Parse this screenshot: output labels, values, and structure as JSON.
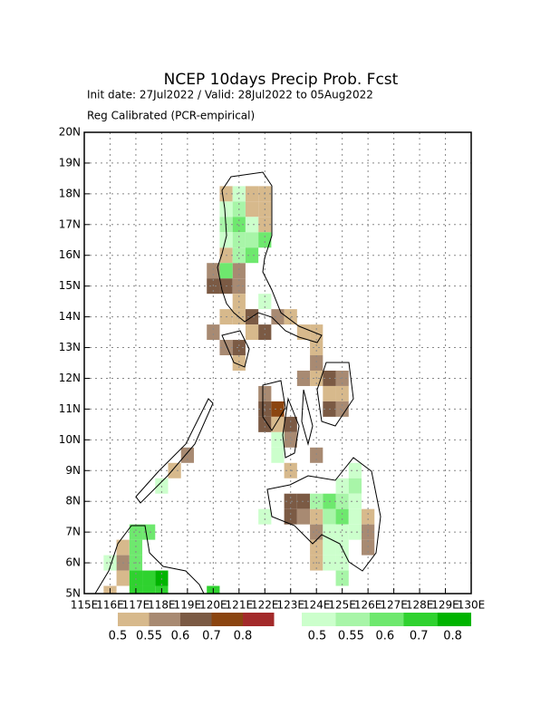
{
  "map": {
    "title": "NCEP 10days Precip Prob. Fcst",
    "subtitle": "Init date: 27Jul2022 / Valid: 28Jul2022 to 05Aug2022",
    "note": "Reg Calibrated (PCR-empirical)",
    "xlim": [
      115,
      130
    ],
    "ylim": [
      5,
      20
    ],
    "xticks": [
      {
        "value": 115,
        "label": "115E"
      },
      {
        "value": 116,
        "label": "116E"
      },
      {
        "value": 117,
        "label": "117E"
      },
      {
        "value": 118,
        "label": "118E"
      },
      {
        "value": 119,
        "label": "119E"
      },
      {
        "value": 120,
        "label": "120E"
      },
      {
        "value": 121,
        "label": "121E"
      },
      {
        "value": 122,
        "label": "122E"
      },
      {
        "value": 123,
        "label": "123E"
      },
      {
        "value": 124,
        "label": "124E"
      },
      {
        "value": 125,
        "label": "125E"
      },
      {
        "value": 126,
        "label": "126E"
      },
      {
        "value": 127,
        "label": "127E"
      },
      {
        "value": 128,
        "label": "128E"
      },
      {
        "value": 129,
        "label": "129E"
      },
      {
        "value": 130,
        "label": "130E"
      }
    ],
    "yticks": [
      {
        "value": 5,
        "label": "5N"
      },
      {
        "value": 6,
        "label": "6N"
      },
      {
        "value": 7,
        "label": "7N"
      },
      {
        "value": 8,
        "label": "8N"
      },
      {
        "value": 9,
        "label": "9N"
      },
      {
        "value": 10,
        "label": "10N"
      },
      {
        "value": 11,
        "label": "11N"
      },
      {
        "value": 12,
        "label": "12N"
      },
      {
        "value": 13,
        "label": "13N"
      },
      {
        "value": 14,
        "label": "14N"
      },
      {
        "value": 15,
        "label": "15N"
      },
      {
        "value": 16,
        "label": "16N"
      },
      {
        "value": 17,
        "label": "17N"
      },
      {
        "value": 18,
        "label": "18N"
      },
      {
        "value": 19,
        "label": "19N"
      },
      {
        "value": 20,
        "label": "20N"
      }
    ],
    "grid": true,
    "levels": [
      0.5,
      0.55,
      0.6,
      0.7,
      0.8
    ],
    "dry_colors": [
      "#d7b98c",
      "#a88a72",
      "#7b5a44",
      "#8b4510",
      "#a32a2a"
    ],
    "wet_colors": [
      "#ccffcc",
      "#a8f5a8",
      "#6ee86e",
      "#2fd22f",
      "#00b400"
    ],
    "dry_cells": [
      [
        120.5,
        18,
        0.5
      ],
      [
        121.5,
        18,
        0.5
      ],
      [
        122,
        18,
        0.5
      ],
      [
        121.5,
        17.5,
        0.5
      ],
      [
        122,
        17.5,
        0.5
      ],
      [
        122,
        17,
        0.5
      ],
      [
        120.5,
        16,
        0.5
      ],
      [
        120,
        15.5,
        0.55
      ],
      [
        121,
        15.5,
        0.55
      ],
      [
        120,
        15,
        0.6
      ],
      [
        120.5,
        15,
        0.6
      ],
      [
        121,
        15,
        0.55
      ],
      [
        121,
        14.5,
        0.5
      ],
      [
        120.5,
        14,
        0.5
      ],
      [
        121,
        14,
        0.5
      ],
      [
        121.5,
        14,
        0.6
      ],
      [
        122.5,
        14,
        0.55
      ],
      [
        123,
        14,
        0.5
      ],
      [
        120,
        13.5,
        0.55
      ],
      [
        121.5,
        13.5,
        0.5
      ],
      [
        122,
        13.5,
        0.6
      ],
      [
        123.5,
        13.5,
        0.5
      ],
      [
        124,
        13.5,
        0.5
      ],
      [
        120.5,
        13,
        0.55
      ],
      [
        121,
        13,
        0.6
      ],
      [
        124,
        13,
        0.5
      ],
      [
        121,
        12.5,
        0.5
      ],
      [
        124,
        12.5,
        0.55
      ],
      [
        123.5,
        12,
        0.55
      ],
      [
        124,
        12,
        0.5
      ],
      [
        124.5,
        12,
        0.6
      ],
      [
        125,
        12,
        0.55
      ],
      [
        122,
        11.5,
        0.55
      ],
      [
        124.5,
        11.5,
        0.5
      ],
      [
        125,
        11.5,
        0.5
      ],
      [
        122,
        11,
        0.6
      ],
      [
        122.5,
        11,
        0.7
      ],
      [
        124.5,
        11,
        0.6
      ],
      [
        125,
        11,
        0.55
      ],
      [
        122,
        10.5,
        0.6
      ],
      [
        122.5,
        10.5,
        0.5
      ],
      [
        123,
        10.5,
        0.6
      ],
      [
        123,
        10,
        0.55
      ],
      [
        124,
        9.5,
        0.55
      ],
      [
        119,
        9.5,
        0.55
      ],
      [
        123,
        9,
        0.5
      ],
      [
        118.5,
        9,
        0.5
      ],
      [
        123,
        8,
        0.6
      ],
      [
        123.5,
        8,
        0.6
      ],
      [
        123,
        7.5,
        0.6
      ],
      [
        123.5,
        7.5,
        0.55
      ],
      [
        124,
        7.5,
        0.5
      ],
      [
        126,
        7.5,
        0.5
      ],
      [
        124,
        7,
        0.55
      ],
      [
        126,
        7,
        0.55
      ],
      [
        116.5,
        6.5,
        0.5
      ],
      [
        124,
        6.5,
        0.5
      ],
      [
        126,
        6.5,
        0.55
      ],
      [
        116.5,
        6,
        0.55
      ],
      [
        124,
        6,
        0.5
      ],
      [
        116.5,
        5.5,
        0.5
      ],
      [
        116,
        5,
        0.5
      ]
    ],
    "wet_cells": [
      [
        121,
        18,
        0.5
      ],
      [
        120.5,
        17.5,
        0.5
      ],
      [
        121,
        17.5,
        0.55
      ],
      [
        120.5,
        17,
        0.55
      ],
      [
        121,
        17,
        0.6
      ],
      [
        121.5,
        17,
        0.5
      ],
      [
        120.5,
        16.5,
        0.5
      ],
      [
        121,
        16.5,
        0.55
      ],
      [
        121.5,
        16.5,
        0.55
      ],
      [
        122,
        16.5,
        0.6
      ],
      [
        121,
        16,
        0.55
      ],
      [
        121.5,
        16,
        0.6
      ],
      [
        120.5,
        15.5,
        0.6
      ],
      [
        122,
        14.5,
        0.5
      ],
      [
        122.5,
        10,
        0.5
      ],
      [
        122.5,
        9.5,
        0.5
      ],
      [
        125.5,
        9,
        0.5
      ],
      [
        118,
        8.5,
        0.5
      ],
      [
        125,
        8.5,
        0.5
      ],
      [
        125.5,
        8.5,
        0.55
      ],
      [
        124,
        8,
        0.55
      ],
      [
        124.5,
        8,
        0.6
      ],
      [
        125,
        8,
        0.55
      ],
      [
        125.5,
        8,
        0.5
      ],
      [
        122,
        7.5,
        0.5
      ],
      [
        124.5,
        7.5,
        0.55
      ],
      [
        125,
        7.5,
        0.6
      ],
      [
        125.5,
        7.5,
        0.5
      ],
      [
        117,
        7,
        0.6
      ],
      [
        117.5,
        7,
        0.6
      ],
      [
        124.5,
        7,
        0.5
      ],
      [
        125,
        7,
        0.5
      ],
      [
        125.5,
        7,
        0.5
      ],
      [
        117,
        6.5,
        0.6
      ],
      [
        124.5,
        6.5,
        0.5
      ],
      [
        125,
        6.5,
        0.5
      ],
      [
        116,
        6,
        0.5
      ],
      [
        117,
        6,
        0.6
      ],
      [
        124.5,
        6,
        0.5
      ],
      [
        125,
        6,
        0.5
      ],
      [
        117,
        5.5,
        0.7
      ],
      [
        117.5,
        5.5,
        0.7
      ],
      [
        118,
        5.5,
        0.8
      ],
      [
        125,
        5.5,
        0.55
      ],
      [
        117,
        5,
        0.7
      ],
      [
        117.5,
        5,
        0.7
      ],
      [
        118,
        5,
        0.7
      ],
      [
        120,
        5,
        0.7
      ]
    ]
  }
}
